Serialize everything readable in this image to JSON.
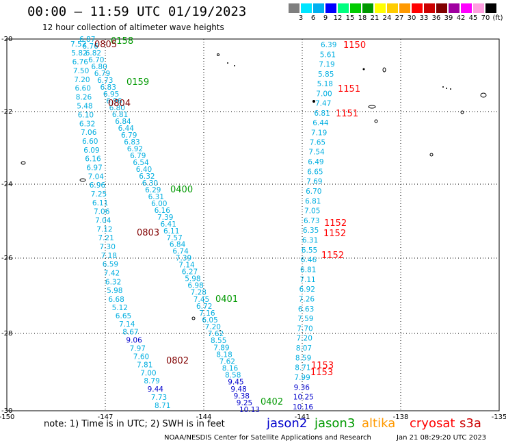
{
  "header": {
    "title": "00:00 — 11:59 UTC 01/19/2023",
    "subtitle": "12 hour collection of altimeter wave heights"
  },
  "colorbar": {
    "ticks": [
      "3",
      "6",
      "9",
      "12",
      "15",
      "18",
      "21",
      "24",
      "27",
      "30",
      "33",
      "36",
      "39",
      "42",
      "45",
      "70"
    ],
    "unit": "(ft)",
    "colors": [
      "#7f7f7f",
      "#00e5ff",
      "#00b0f0",
      "#0000ff",
      "#00ff7f",
      "#00cc00",
      "#009900",
      "#ffff00",
      "#ffcc00",
      "#ff9900",
      "#ff0000",
      "#cc0000",
      "#800000",
      "#a000a0",
      "#ff00ff",
      "#ff9ee0",
      "#000000"
    ]
  },
  "axes": {
    "lon_labels": [
      "-150",
      "-147",
      "-144",
      "-141",
      "-138",
      "-135"
    ],
    "lat_labels": [
      "-20",
      "-22",
      "-24",
      "-26",
      "-28",
      "-30"
    ]
  },
  "colors": {
    "jason3_value": "#00aee0",
    "jason2_value": "#0000cc",
    "time_jason3": "#009900",
    "time_cryosat": "#ff0000",
    "time_other": "#800000"
  },
  "tracks": {
    "track_a": [
      "7.52",
      "5.82",
      "6.76",
      "7.50",
      "7.20",
      "6.60",
      "8.26",
      "5.48",
      "6.10",
      "6.32",
      "7.06",
      "6.60",
      "6.09",
      "6.16",
      "6.97",
      "7.04",
      "6.96",
      "7.25",
      "6.11",
      "7.06",
      "7.04",
      "7.12",
      "7.21",
      "7.30",
      "7.18",
      "6.59",
      "7.42",
      "6.32",
      "5.98",
      "6.68",
      "5.12",
      "6.65",
      "7.14",
      "8.67",
      "9.06",
      "7.97",
      "7.60",
      "7.81",
      "7.00",
      "8.79",
      "9.44",
      "7.73",
      "8.71"
    ],
    "track_b": [
      "6.87",
      "6.76",
      "6.82",
      "6.70",
      "6.80",
      "6.79",
      "6.73",
      "6.83",
      "6.95",
      "6.96",
      "6.80",
      "6.81",
      "6.84",
      "6.44",
      "6.79",
      "6.83",
      "6.92",
      "6.79",
      "6.54",
      "6.40",
      "6.32",
      "6.30",
      "6.29",
      "6.31",
      "6.00",
      "6.16",
      "7.39",
      "6.41",
      "6.11",
      "7.57",
      "6.84",
      "6.74",
      "7.39",
      "7.14",
      "6.27",
      "5.98",
      "6.98",
      "7.28",
      "7.45",
      "6.72",
      "7.16",
      "6.05",
      "7.20",
      "7.62",
      "8.55",
      "7.89",
      "8.18",
      "7.62",
      "8.16",
      "8.58",
      "9.45",
      "9.48",
      "9.38",
      "9.25",
      "10.13"
    ],
    "track_c": [
      "6.39",
      "5.61",
      "7.19",
      "5.85",
      "5.18",
      "7.00",
      "7.47",
      "6.81",
      "6.44",
      "7.19",
      "7.65",
      "7.54",
      "6.49",
      "6.65",
      "7.69",
      "6.70",
      "6.81",
      "7.05",
      "6.73",
      "6.35",
      "6.31",
      "6.55",
      "6.46",
      "6.81",
      "7.11",
      "6.92",
      "7.26",
      "6.63",
      "7.59",
      "7.70",
      "7.20",
      "8.07",
      "8.59",
      "8.71",
      "7.99",
      "9.36",
      "10.25",
      "10.16"
    ]
  },
  "times": {
    "t0158": "0158",
    "t0805": "0805",
    "t0159": "0159",
    "t0804": "0804",
    "t0400": "0400",
    "t0803": "0803",
    "t0401": "0401",
    "t0802": "0802",
    "t0402": "0402",
    "t1150": "1150",
    "t1151a": "1151",
    "t1151b": "1151",
    "t1152a": "1152",
    "t1152b": "1152",
    "t1152c": "1152",
    "t1153a": "1153",
    "t1153b": "1153"
  },
  "footer": {
    "note": "note: 1) Time is in UTC; 2) SWH is in feet",
    "satellites": [
      {
        "name": "jason2",
        "color": "#0000cc"
      },
      {
        "name": "jason3",
        "color": "#009900"
      },
      {
        "name": "altika",
        "color": "#ff9900"
      },
      {
        "name": "cryosat",
        "color": "#ff0000"
      },
      {
        "name": "s3a",
        "color": "#cc0000"
      }
    ],
    "credit": "NOAA/NESDIS Center for Satellite Applications and Research",
    "timestamp": "Jan 21 08:29:20 UTC 2023"
  }
}
